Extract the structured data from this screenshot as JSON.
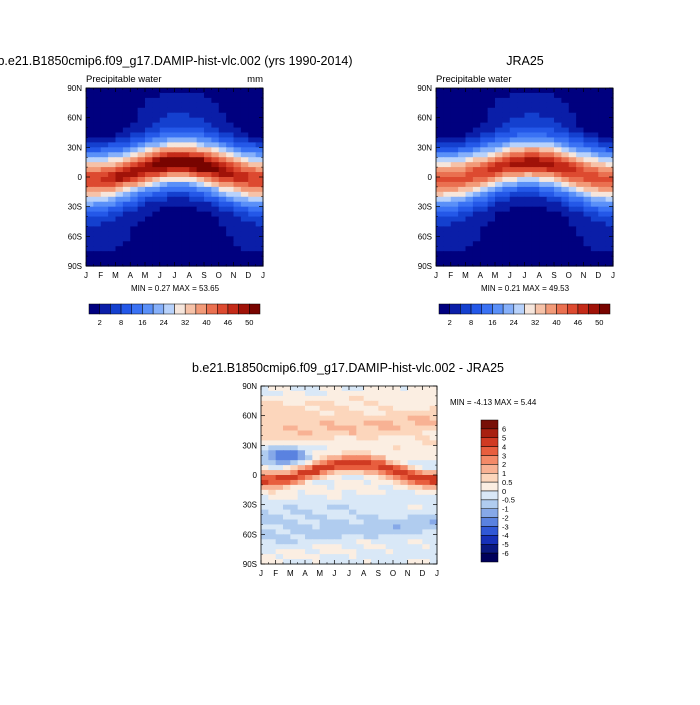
{
  "chart_data": [
    {
      "type": "heatmap",
      "title": "b.e21.B1850cmip6.f09_g17.DAMIP-hist-vlc.002 (yrs 1990-2014)",
      "left_label": "Precipitable water",
      "right_label": "mm",
      "x_ticks": [
        "J",
        "F",
        "M",
        "A",
        "M",
        "J",
        "J",
        "A",
        "S",
        "O",
        "N",
        "D",
        "J"
      ],
      "y_ticks": [
        "90N",
        "60N",
        "30N",
        "0",
        "30S",
        "60S",
        "90S"
      ],
      "ylim": [
        -90,
        90
      ],
      "stats": "MIN =   0.27 MAX =  53.65",
      "min": 0.27,
      "max": 53.65,
      "colorbar": {
        "orientation": "horizontal",
        "levels": [
          2,
          5,
          8,
          12,
          16,
          20,
          24,
          28,
          32,
          36,
          40,
          43,
          46,
          48,
          50
        ],
        "labels": [
          "2",
          "8",
          "16",
          "24",
          "32",
          "40",
          "46",
          "50"
        ]
      }
    },
    {
      "type": "heatmap",
      "title": "JRA25",
      "left_label": "Precipitable water",
      "right_label": "",
      "x_ticks": [
        "J",
        "F",
        "M",
        "A",
        "M",
        "J",
        "J",
        "A",
        "S",
        "O",
        "N",
        "D",
        "J"
      ],
      "y_ticks": [
        "90N",
        "60N",
        "30N",
        "0",
        "30S",
        "60S",
        "90S"
      ],
      "ylim": [
        -90,
        90
      ],
      "stats": "MIN =   0.21 MAX =  49.53",
      "min": 0.21,
      "max": 49.53,
      "colorbar": {
        "orientation": "horizontal",
        "levels": [
          2,
          5,
          8,
          12,
          16,
          20,
          24,
          28,
          32,
          36,
          40,
          43,
          46,
          48,
          50
        ],
        "labels": [
          "2",
          "8",
          "16",
          "24",
          "32",
          "40",
          "46",
          "50"
        ]
      }
    },
    {
      "type": "heatmap",
      "title": "b.e21.B1850cmip6.f09_g17.DAMIP-hist-vlc.002 - JRA25",
      "x_ticks": [
        "J",
        "F",
        "M",
        "A",
        "M",
        "J",
        "J",
        "A",
        "S",
        "O",
        "N",
        "D",
        "J"
      ],
      "y_ticks": [
        "90N",
        "60N",
        "30N",
        "0",
        "30S",
        "60S",
        "90S"
      ],
      "ylim": [
        -90,
        90
      ],
      "stats": "MIN =  -4.13 MAX =   5.44",
      "min": -4.13,
      "max": 5.44,
      "colorbar": {
        "orientation": "vertical",
        "labels": [
          "6",
          "5",
          "4",
          "3",
          "2",
          "1",
          "0.5",
          "0",
          "-0.5",
          "-1",
          "-2",
          "-3",
          "-4",
          "-5",
          "-6"
        ]
      }
    }
  ],
  "palettes": {
    "sequential": [
      "#00007f",
      "#0a1ea8",
      "#1440cf",
      "#2458e8",
      "#3a72f4",
      "#5a90f8",
      "#86b0fa",
      "#b8d2fb",
      "#f6e6dc",
      "#f6c2a8",
      "#f29a78",
      "#ea7050",
      "#dd4a30",
      "#c42a18",
      "#a01208",
      "#780400"
    ],
    "diverging": [
      "#781008",
      "#a82010",
      "#d03a22",
      "#e85e3e",
      "#f48a68",
      "#f8b294",
      "#fcd6bc",
      "#fbeee2",
      "#d9e8f7",
      "#b0ccef",
      "#86a8e8",
      "#5a82e0",
      "#3058d6",
      "#1630b8",
      "#0a1880",
      "#00005a"
    ]
  }
}
